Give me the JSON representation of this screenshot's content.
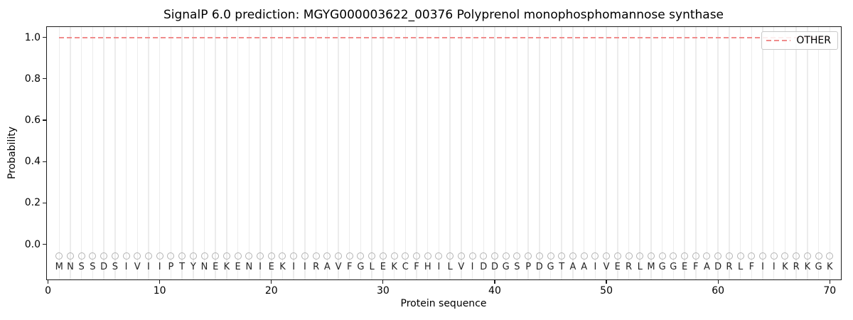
{
  "chart_data": {
    "type": "line",
    "title": "SignalP 6.0 prediction: MGYG000003622_00376 Polyprenol monophosphomannose synthase",
    "xlabel": "Protein sequence",
    "ylabel": "Probability",
    "xlim": [
      -0.1,
      71.0
    ],
    "ylim": [
      -0.17,
      1.05
    ],
    "x_ticks": [
      0,
      10,
      20,
      30,
      40,
      50,
      60,
      70
    ],
    "y_ticks": [
      {
        "value": 0.0,
        "label": "0.0"
      },
      {
        "value": 0.2,
        "label": "0.2"
      },
      {
        "value": 0.4,
        "label": "0.4"
      },
      {
        "value": 0.6,
        "label": "0.6"
      },
      {
        "value": 0.8,
        "label": "0.8"
      },
      {
        "value": 1.0,
        "label": "1.0"
      }
    ],
    "grid": {
      "vertical_line_per_residue": true,
      "color": "#ececec"
    },
    "series": [
      {
        "name": "OTHER",
        "linestyle": "dashed",
        "color": "#f08c8c",
        "x_start": 1,
        "x_end": 70,
        "y_constant": 1.0
      }
    ],
    "legend": {
      "position": "upper-right",
      "entries": [
        {
          "label": "OTHER",
          "color": "#f08c8c",
          "linestyle": "dashed"
        }
      ]
    },
    "sequence": "MNSSDSIVIIPTYNEKENIEKIIRAVFGLEKCFHILVIDDGSPDGTAAIVERLMGGEFADRLFIIKRKGK",
    "sequence_length": 70,
    "markers": {
      "shape": "circle",
      "fill": "none",
      "color": "#b3b3b3",
      "y": -0.055
    },
    "letters_y": -0.112,
    "colors": {
      "axis": "#1c1c1c",
      "text": "#000000",
      "residue_letter": "#262626",
      "legend_border": "#c9c9c9"
    }
  }
}
